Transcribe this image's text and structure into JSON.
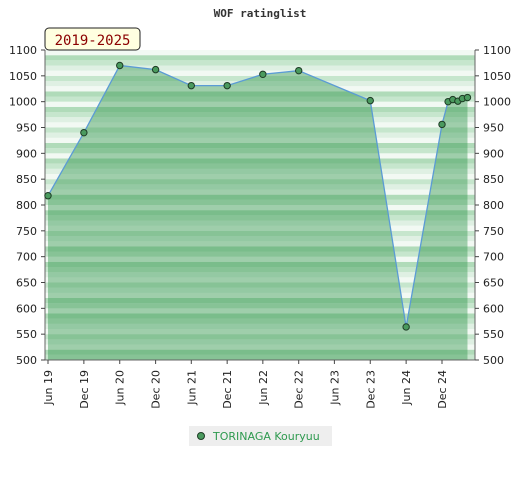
{
  "chart_data": {
    "type": "line",
    "title": "WOF ratinglist",
    "period_label": "2019-2025",
    "xlabel": "",
    "ylabel": "",
    "ylim": [
      500,
      1100
    ],
    "yticks": [
      500,
      550,
      600,
      650,
      700,
      750,
      800,
      850,
      900,
      950,
      1000,
      1050,
      1100
    ],
    "xlim": [
      "2019-06-01",
      "2025-02-01"
    ],
    "xticks": [
      {
        "date": "2019-06-01",
        "label": "Jun 19"
      },
      {
        "date": "2019-12-01",
        "label": "Dec 19"
      },
      {
        "date": "2020-06-01",
        "label": "Jun 20"
      },
      {
        "date": "2020-12-01",
        "label": "Dec 20"
      },
      {
        "date": "2021-06-01",
        "label": "Jun 21"
      },
      {
        "date": "2021-12-01",
        "label": "Dec 21"
      },
      {
        "date": "2022-06-01",
        "label": "Jun 22"
      },
      {
        "date": "2022-12-01",
        "label": "Dec 22"
      },
      {
        "date": "2023-06-01",
        "label": "Jun 23"
      },
      {
        "date": "2023-12-01",
        "label": "Dec 23"
      },
      {
        "date": "2024-06-01",
        "label": "Jun 24"
      },
      {
        "date": "2024-12-01",
        "label": "Dec 24"
      }
    ],
    "grid": true,
    "legend_position": "bottom-center",
    "series": [
      {
        "name": "TORINAGA Kouryuu",
        "color": "#4a9a5e",
        "line_color": "#5b9bd5",
        "points": [
          {
            "x": "2019-06-01",
            "y": 818
          },
          {
            "x": "2019-12-01",
            "y": 940
          },
          {
            "x": "2020-06-01",
            "y": 1070
          },
          {
            "x": "2020-12-01",
            "y": 1062
          },
          {
            "x": "2021-06-01",
            "y": 1031
          },
          {
            "x": "2021-12-01",
            "y": 1031
          },
          {
            "x": "2022-06-01",
            "y": 1053
          },
          {
            "x": "2022-12-01",
            "y": 1060
          },
          {
            "x": "2023-12-01",
            "y": 1002
          },
          {
            "x": "2024-06-01",
            "y": 564
          },
          {
            "x": "2024-12-01",
            "y": 956
          },
          {
            "x": "2025-01-01",
            "y": 1000
          },
          {
            "x": "2025-01-25",
            "y": 1004
          },
          {
            "x": "2025-02-20",
            "y": 1001
          },
          {
            "x": "2025-03-15",
            "y": 1006
          },
          {
            "x": "2025-04-10",
            "y": 1008
          }
        ]
      }
    ]
  }
}
